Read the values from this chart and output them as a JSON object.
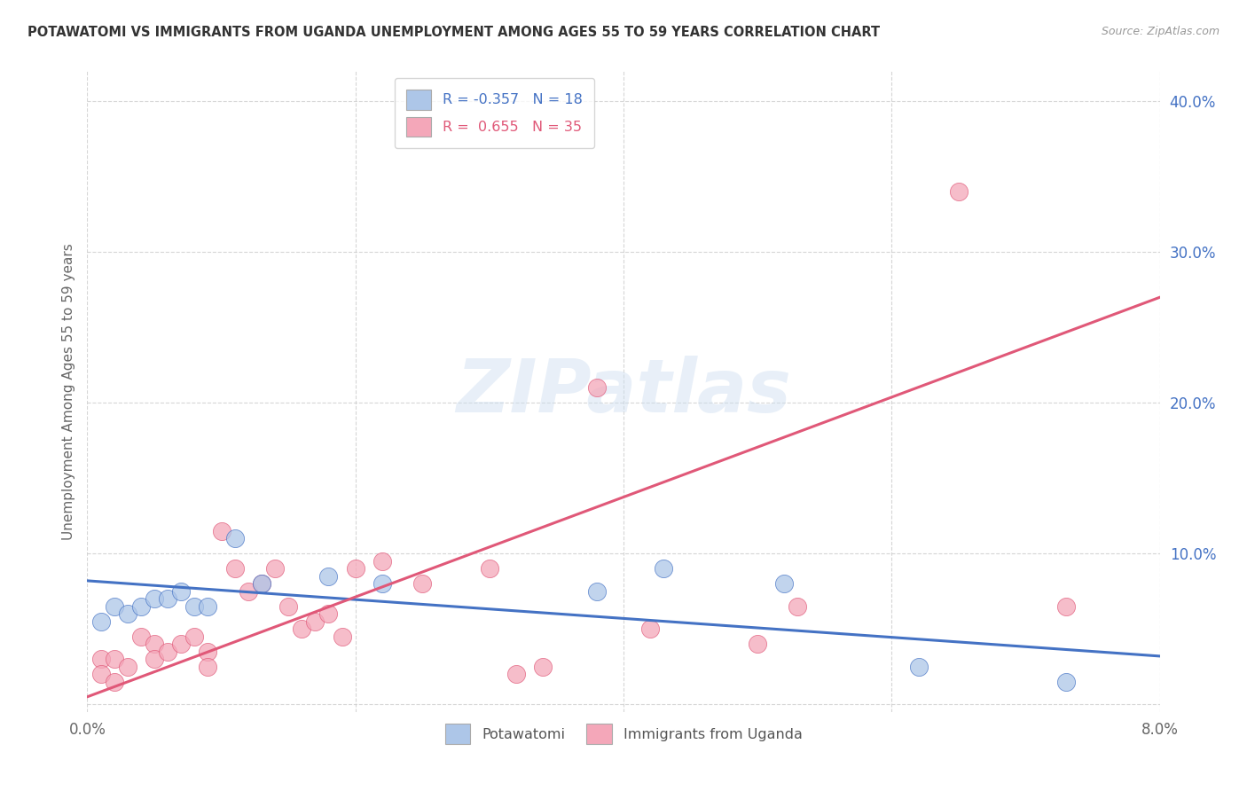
{
  "title": "POTAWATOMI VS IMMIGRANTS FROM UGANDA UNEMPLOYMENT AMONG AGES 55 TO 59 YEARS CORRELATION CHART",
  "source": "Source: ZipAtlas.com",
  "ylabel": "Unemployment Among Ages 55 to 59 years",
  "watermark": "ZIPatlas",
  "xmin": 0.0,
  "xmax": 0.08,
  "ymin": -0.005,
  "ymax": 0.42,
  "yticks": [
    0.0,
    0.1,
    0.2,
    0.3,
    0.4
  ],
  "ytick_labels": [
    "",
    "10.0%",
    "20.0%",
    "30.0%",
    "40.0%"
  ],
  "xticks": [
    0.0,
    0.02,
    0.04,
    0.06,
    0.08
  ],
  "xtick_labels": [
    "0.0%",
    "",
    "",
    "",
    "8.0%"
  ],
  "legend1_label": "R = -0.357   N = 18",
  "legend2_label": "R =  0.655   N = 35",
  "series1_color": "#adc6e8",
  "series2_color": "#f4a7b9",
  "line1_color": "#4472c4",
  "line2_color": "#e05878",
  "potawatomi_x": [
    0.001,
    0.002,
    0.003,
    0.004,
    0.005,
    0.006,
    0.007,
    0.008,
    0.009,
    0.011,
    0.013,
    0.018,
    0.022,
    0.038,
    0.043,
    0.052,
    0.062,
    0.073
  ],
  "potawatomi_y": [
    0.055,
    0.065,
    0.06,
    0.065,
    0.07,
    0.07,
    0.075,
    0.065,
    0.065,
    0.11,
    0.08,
    0.085,
    0.08,
    0.075,
    0.09,
    0.08,
    0.025,
    0.015
  ],
  "uganda_x": [
    0.001,
    0.001,
    0.002,
    0.002,
    0.003,
    0.004,
    0.005,
    0.005,
    0.006,
    0.007,
    0.008,
    0.009,
    0.009,
    0.01,
    0.011,
    0.012,
    0.013,
    0.014,
    0.015,
    0.016,
    0.017,
    0.018,
    0.019,
    0.02,
    0.022,
    0.025,
    0.03,
    0.032,
    0.034,
    0.038,
    0.042,
    0.05,
    0.053,
    0.065,
    0.073
  ],
  "uganda_y": [
    0.03,
    0.02,
    0.03,
    0.015,
    0.025,
    0.045,
    0.04,
    0.03,
    0.035,
    0.04,
    0.045,
    0.035,
    0.025,
    0.115,
    0.09,
    0.075,
    0.08,
    0.09,
    0.065,
    0.05,
    0.055,
    0.06,
    0.045,
    0.09,
    0.095,
    0.08,
    0.09,
    0.02,
    0.025,
    0.21,
    0.05,
    0.04,
    0.065,
    0.34,
    0.065
  ],
  "line1_x0": 0.0,
  "line1_x1": 0.08,
  "line1_y0": 0.082,
  "line1_y1": 0.032,
  "line2_x0": 0.0,
  "line2_x1": 0.08,
  "line2_y0": 0.005,
  "line2_y1": 0.27,
  "background_color": "#ffffff",
  "grid_color": "#cccccc"
}
